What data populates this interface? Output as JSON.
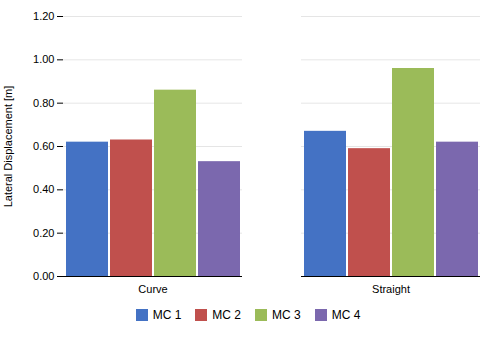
{
  "chart_data": {
    "type": "bar",
    "categories": [
      "Curve",
      "Straight"
    ],
    "series": [
      {
        "name": "MC 1",
        "color": "#4472C4",
        "values": [
          0.62,
          0.67
        ]
      },
      {
        "name": "MC 2",
        "color": "#C0504D",
        "values": [
          0.63,
          0.59
        ]
      },
      {
        "name": "MC 3",
        "color": "#9BBB59",
        "values": [
          0.86,
          0.96
        ]
      },
      {
        "name": "MC 4",
        "color": "#7B68AE",
        "values": [
          0.53,
          0.62
        ]
      }
    ],
    "ylabel": "Lateral Displacement [m]",
    "ylim": [
      0.0,
      1.2
    ],
    "yticks": [
      {
        "value": 0.0,
        "label": "0.00"
      },
      {
        "value": 0.2,
        "label": "0.20"
      },
      {
        "value": 0.4,
        "label": "0.40"
      },
      {
        "value": 0.6,
        "label": "0.60"
      },
      {
        "value": 0.8,
        "label": "0.80"
      },
      {
        "value": 1.0,
        "label": "1.00"
      },
      {
        "value": 1.2,
        "label": "1.20"
      }
    ],
    "grid": true,
    "legend": "bottom"
  }
}
